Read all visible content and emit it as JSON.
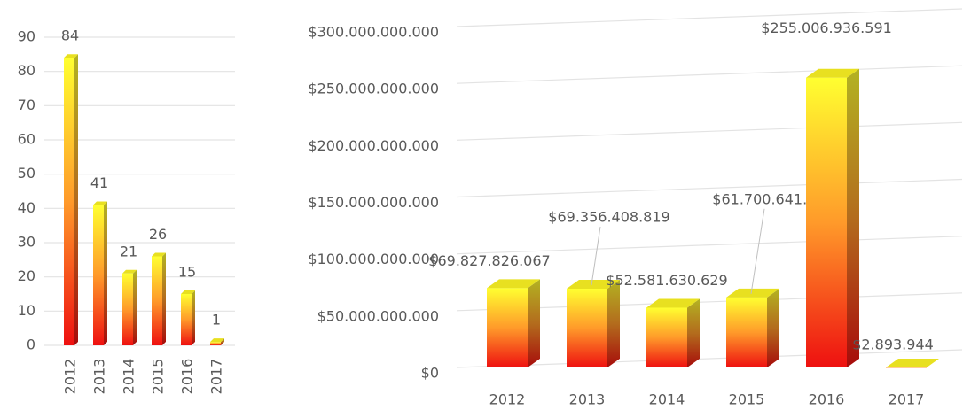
{
  "chart_data": [
    {
      "type": "bar",
      "categories": [
        "2012",
        "2013",
        "2014",
        "2015",
        "2016",
        "2017"
      ],
      "values": [
        84,
        41,
        21,
        26,
        15,
        1
      ],
      "ylim": [
        0,
        90
      ],
      "yticks": [
        0,
        10,
        20,
        30,
        40,
        50,
        60,
        70,
        80,
        90
      ],
      "grid": true,
      "color": [
        "#ffff30",
        "#ff9a2a",
        "#ee1010"
      ]
    },
    {
      "type": "bar",
      "categories": [
        "2012",
        "2013",
        "2014",
        "2015",
        "2016",
        "2017"
      ],
      "values": [
        69827826067,
        69356408819,
        52581630629,
        61700641601,
        255006936591,
        2893944
      ],
      "value_labels": [
        "$69.827.826.067",
        "$69.356.408.819",
        "$52.581.630.629",
        "$61.700.641.601",
        "$255.006.936.591",
        "$2.893.944"
      ],
      "ylim": [
        0,
        300000000000
      ],
      "yticks": [
        {
          "value": 0,
          "label": "$0"
        },
        {
          "value": 50000000000,
          "label": "$50.000.000.000"
        },
        {
          "value": 100000000000,
          "label": "$100.000.000.000"
        },
        {
          "value": 150000000000,
          "label": "$150.000.000.000"
        },
        {
          "value": 200000000000,
          "label": "$200.000.000.000"
        },
        {
          "value": 250000000000,
          "label": "$250.000.000.000"
        },
        {
          "value": 300000000000,
          "label": "$300.000.000.000"
        }
      ],
      "grid": true,
      "color": [
        "#ffff30",
        "#ff9a2a",
        "#ee1010"
      ]
    }
  ]
}
